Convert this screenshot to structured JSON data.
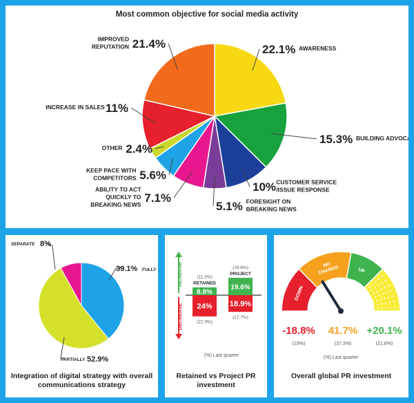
{
  "chart_data": [
    {
      "type": "pie",
      "title": "Most common objective for social media activity",
      "slices": [
        {
          "label": "AWARENESS",
          "value_text": "22.1%",
          "value": 22.1,
          "color": "#f7d812"
        },
        {
          "label": "BUILDING ADVOCACY",
          "value_text": "15.3%",
          "value": 15.3,
          "color": "#18a23d"
        },
        {
          "label": "CUSTOMER SERVICE /ISSUE RESPONSE",
          "value_text": "10%",
          "value": 10,
          "color": "#1c3f9a"
        },
        {
          "label": "FORESIGHT ON BREAKING NEWS",
          "value_text": "5.1%",
          "value": 5.1,
          "color": "#7a3c98"
        },
        {
          "label": "ABILITY TO ACT QUICKLY TO BREAKING NEWS",
          "value_text": "7.1%",
          "value": 7.1,
          "color": "#e8168f"
        },
        {
          "label": "KEEP PACE WITH COMPETITORS",
          "value_text": "5.6%",
          "value": 5.6,
          "color": "#1ea3e6"
        },
        {
          "label": "OTHER",
          "value_text": "2.4%",
          "value": 2.4,
          "color": "#c9d82a"
        },
        {
          "label": "INCREASE IN SALES",
          "value_text": "11%",
          "value": 11,
          "color": "#e6202c"
        },
        {
          "label": "IMPROVED REPUTATION",
          "value_text": "21.4%",
          "value": 21.4,
          "color": "#f26b1d"
        }
      ]
    },
    {
      "type": "pie",
      "title": "Integration of digital strategy with overall communications strategy",
      "slices": [
        {
          "label": "FULLY",
          "value_text": "39.1%",
          "value": 39.1,
          "color": "#1ea3e6"
        },
        {
          "label": "PARTIALLY",
          "value_text": "52.9%",
          "value": 52.9,
          "color": "#d4e02a"
        },
        {
          "label": "SEPARATE",
          "value_text": "8%",
          "value": 8,
          "color": "#e8168f"
        }
      ]
    },
    {
      "type": "bar",
      "title": "Retained vs Project PR investment",
      "axis_labels": {
        "increase": "INCREASE",
        "decrease": "DECREASE"
      },
      "categories": [
        "RETAINED",
        "PROJECT"
      ],
      "increase": {
        "values": [
          8.8,
          19.6
        ],
        "texts": [
          "8.8%",
          "19.6%"
        ],
        "last_quarter": [
          "(11.3%)",
          "(19.6%)"
        ],
        "color": "#3fb34f"
      },
      "decrease": {
        "values": [
          24,
          18.9
        ],
        "texts": [
          "24%",
          "18.9%"
        ],
        "last_quarter": [
          "(22.3%)",
          "(17.7%)"
        ],
        "color": "#e6202c"
      },
      "footnote": "(%) Last quarter"
    },
    {
      "type": "gauge",
      "title": "Overall global PR investment",
      "segments": [
        {
          "label": "DOWN",
          "value": -18.8,
          "text": "-18.8%",
          "last_quarter": "(19%)",
          "color": "#e6202c"
        },
        {
          "label": "NO CHANGE",
          "value": 41.7,
          "text": "41.7%",
          "last_quarter": "(37.3%)",
          "color": "#f5a11d"
        },
        {
          "label": "UP",
          "value": 20.1,
          "text": "+20.1%",
          "last_quarter": "(21.8%)",
          "color": "#3fb34f"
        }
      ],
      "footnote": "(%) Last quarter"
    }
  ]
}
